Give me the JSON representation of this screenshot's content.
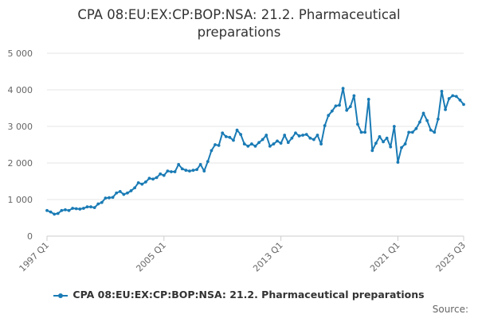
{
  "chart_data": {
    "type": "line",
    "title_lines": [
      "CPA 08:EU:EX:CP:BOP:NSA: 21.2. Pharmaceutical",
      "preparations"
    ],
    "xlabel": "",
    "ylabel": "",
    "ylim": [
      0,
      5000
    ],
    "y_ticks": [
      "0",
      "1 000",
      "2 000",
      "3 000",
      "4 000",
      "5 000"
    ],
    "y_tick_values": [
      0,
      1000,
      2000,
      3000,
      4000,
      5000
    ],
    "x_tick_labels": [
      "1997 Q1",
      "2005 Q1",
      "2013 Q1",
      "2021 Q1",
      "2025 Q3"
    ],
    "x_tick_indices": [
      0,
      32,
      64,
      96,
      114
    ],
    "grid": true,
    "legend_position": "bottom",
    "series": [
      {
        "name": "CPA 08:EU:EX:CP:BOP:NSA: 21.2. Pharmaceutical preparations",
        "color": "#1a7bb5",
        "values": [
          700,
          660,
          600,
          620,
          700,
          720,
          700,
          760,
          750,
          740,
          760,
          800,
          800,
          780,
          880,
          920,
          1040,
          1050,
          1060,
          1180,
          1220,
          1140,
          1180,
          1240,
          1320,
          1460,
          1420,
          1480,
          1580,
          1560,
          1600,
          1700,
          1660,
          1780,
          1760,
          1760,
          1960,
          1840,
          1800,
          1780,
          1800,
          1820,
          1960,
          1780,
          2040,
          2340,
          2500,
          2480,
          2820,
          2720,
          2700,
          2620,
          2900,
          2780,
          2520,
          2460,
          2520,
          2460,
          2560,
          2640,
          2760,
          2460,
          2520,
          2600,
          2540,
          2760,
          2560,
          2680,
          2820,
          2740,
          2760,
          2780,
          2680,
          2640,
          2760,
          2520,
          3020,
          3300,
          3420,
          3560,
          3580,
          4040,
          3440,
          3540,
          3840,
          3060,
          2840,
          2840,
          3740,
          2340,
          2540,
          2720,
          2580,
          2680,
          2440,
          3000,
          2020,
          2420,
          2520,
          2840,
          2840,
          2940,
          3120,
          3360,
          3160,
          2900,
          2840,
          3200,
          3960,
          3460,
          3760,
          3840,
          3820,
          3720,
          3600
        ]
      }
    ]
  },
  "legend": {
    "label": "CPA 08:EU:EX:CP:BOP:NSA: 21.2. Pharmaceutical preparations"
  },
  "source_label": "Source:"
}
